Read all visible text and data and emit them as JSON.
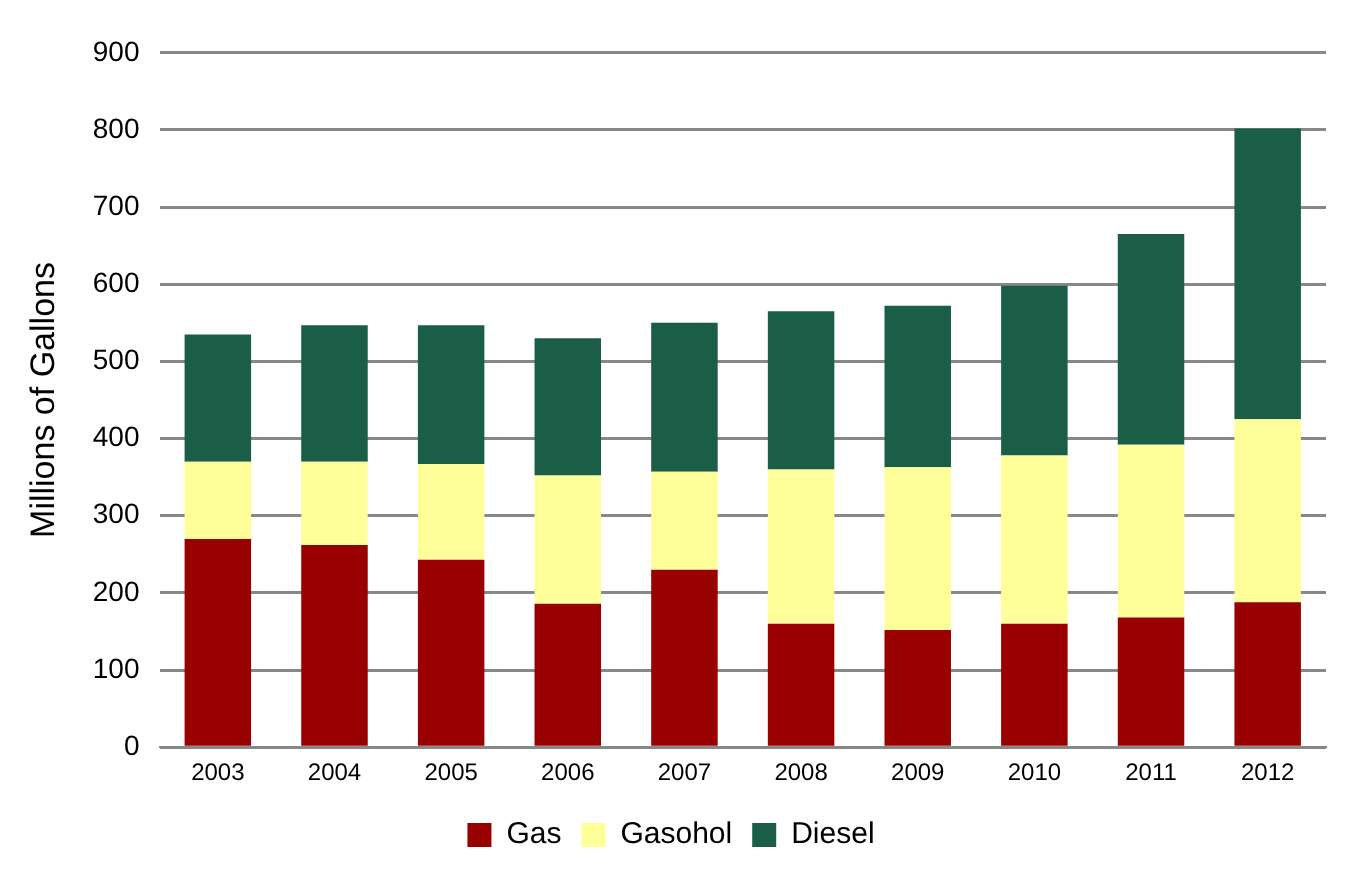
{
  "chart_data": {
    "type": "bar",
    "stacked": true,
    "ylabel": "Millions of Gallons",
    "categories": [
      "2003",
      "2004",
      "2005",
      "2006",
      "2007",
      "2008",
      "2009",
      "2010",
      "2011",
      "2012"
    ],
    "series": [
      {
        "name": "Gas",
        "color": "#990000",
        "values": [
          270,
          262,
          243,
          186,
          230,
          160,
          152,
          160,
          168,
          188
        ]
      },
      {
        "name": "Gasohol",
        "color": "#ffff99",
        "values": [
          100,
          108,
          124,
          166,
          127,
          200,
          211,
          218,
          224,
          237
        ]
      },
      {
        "name": "Diesel",
        "color": "#1b5e48",
        "values": [
          165,
          177,
          180,
          178,
          193,
          205,
          209,
          220,
          273,
          377
        ]
      }
    ],
    "ylim": [
      0,
      900
    ],
    "yticks": [
      0,
      100,
      200,
      300,
      400,
      500,
      600,
      700,
      800,
      900
    ],
    "grid": "y",
    "legend": "bottom"
  }
}
